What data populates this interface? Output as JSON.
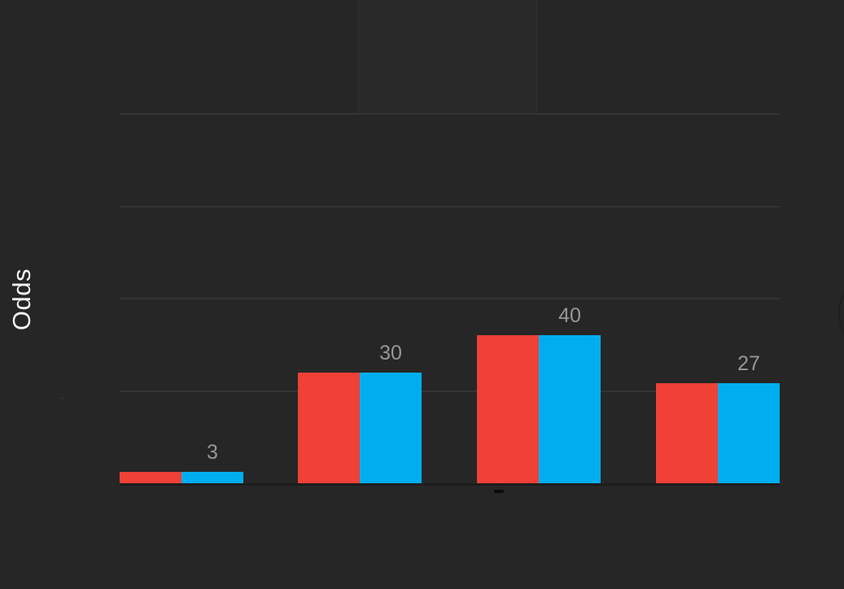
{
  "y_axis": {
    "label": "Odds"
  },
  "colors": {
    "background": "#262626",
    "gridline": "#343434",
    "axis_line": "#1d1d1d",
    "series_red": "#ef4136",
    "series_blue": "#00aeef",
    "value_label_text": "#979797",
    "axis_label_text": "#f7f7f7",
    "tick_dash": "#0b0b0b"
  },
  "chart_data": {
    "type": "bar",
    "grouping": "grouped",
    "title": "",
    "xlabel": "",
    "ylabel": "Odds",
    "categories": [
      "",
      "",
      "",
      ""
    ],
    "series": [
      {
        "name": "red",
        "color": "#ef4136",
        "values": [
          3,
          30,
          40,
          27
        ]
      },
      {
        "name": "blue",
        "color": "#00aeef",
        "values": [
          3,
          30,
          40,
          27
        ]
      }
    ],
    "value_labels": [
      "3",
      "30",
      "40",
      "27"
    ],
    "ylim": [
      0,
      131
    ],
    "gridline_values": [
      25,
      50,
      75,
      100
    ],
    "grid": "horizontal",
    "legend": "none",
    "x_tick_labels_visible": false,
    "y_tick_labels_visible": false
  }
}
